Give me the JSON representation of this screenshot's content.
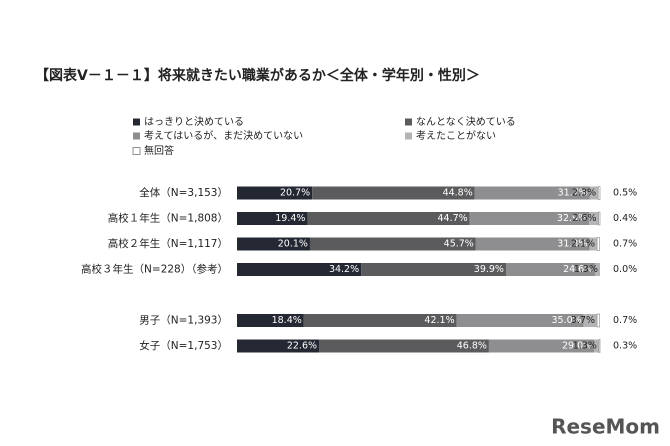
{
  "chart_data": {
    "type": "stacked-barh",
    "title": "【図表Ⅴ－１－１】将来就きたい職業があるか＜全体・学年別・性別＞",
    "watermark": "ReseMom",
    "categories": [
      "全体（N=3,153）",
      "高校１年生（N=1,808）",
      "高校２年生（N=1,117）",
      "高校３年生（N=228）（参考）",
      null,
      "男子（N=1,393）",
      "女子（N=1,753）"
    ],
    "xlim": [
      0,
      100
    ],
    "series": [
      {
        "name": "はっきりと決めている",
        "color": "#232833",
        "values": [
          20.7,
          19.4,
          20.1,
          34.2,
          null,
          18.4,
          22.6
        ],
        "value_labels": [
          "20.7%",
          "19.4%",
          "20.1%",
          "34.2%",
          null,
          "18.4%",
          "22.6%"
        ]
      },
      {
        "name": "なんとなく決めている",
        "color": "#5b5b5d",
        "values": [
          44.8,
          44.7,
          45.7,
          39.9,
          null,
          42.1,
          46.8
        ],
        "value_labels": [
          "44.8%",
          "44.7%",
          "45.7%",
          "39.9%",
          null,
          "42.1%",
          "46.8%"
        ]
      },
      {
        "name": "考えてはいるが、まだ決めていない",
        "color": "#8e8e90",
        "values": [
          31.7,
          32.9,
          31.3,
          24.6,
          null,
          35.0,
          29.0
        ],
        "value_labels": [
          "31.7%",
          "32.9%",
          "31.3%",
          "24.6%",
          null,
          "35.0%",
          "29.0%"
        ]
      },
      {
        "name": "考えたことがない",
        "color": "#b4b4b6",
        "values": [
          2.3,
          2.6,
          2.1,
          1.3,
          null,
          3.7,
          1.3
        ],
        "value_labels": [
          "2.3%",
          "2.6%",
          "2.1%",
          "1.3%",
          null,
          "3.7%",
          "1.3%"
        ]
      },
      {
        "name": "無回答",
        "color": "#ffffff",
        "values": [
          0.5,
          0.4,
          0.7,
          0.0,
          null,
          0.7,
          0.3
        ],
        "value_labels": [
          "0.5%",
          "0.4%",
          "0.7%",
          "0.0%",
          null,
          "0.7%",
          "0.3%"
        ]
      }
    ]
  }
}
